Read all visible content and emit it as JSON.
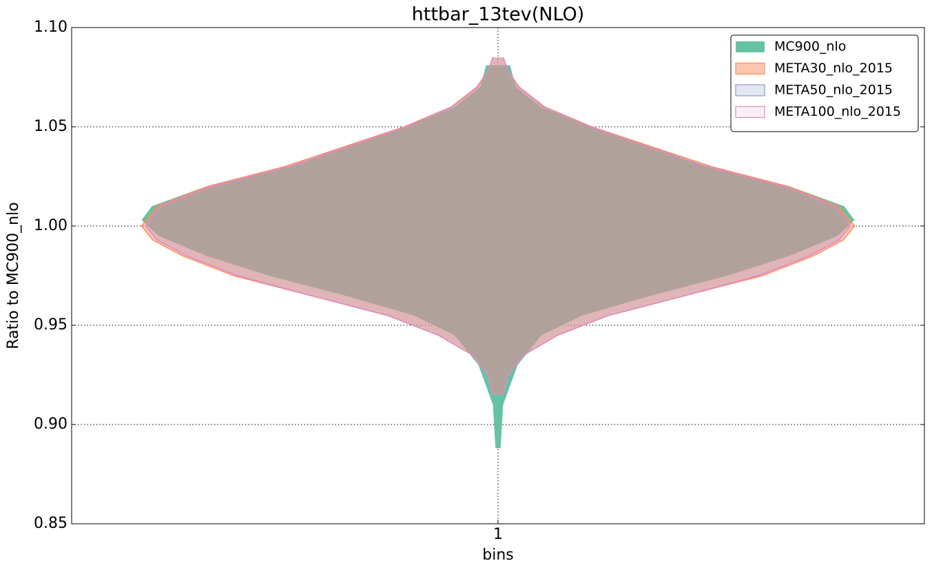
{
  "chart_data": {
    "type": "violin",
    "title": "httbar_13tev(NLO)",
    "xlabel": "bins",
    "ylabel": "Ratio to MC900_nlo",
    "categories": [
      1
    ],
    "xlim": [
      0.5,
      1.5
    ],
    "xticks": [
      1
    ],
    "ylim": [
      0.85,
      1.1
    ],
    "yticks": [
      0.85,
      {
        "value": 0.9,
        "label": "0.90"
      },
      0.95,
      {
        "value": 1.0,
        "label": "1.00"
      },
      1.05,
      {
        "value": 1.1,
        "label": "1.10"
      }
    ],
    "grid": true,
    "legend": "upper right",
    "series": [
      {
        "name": "MC900_nlo",
        "color": "#66c2a5",
        "alpha": 1,
        "y": [
          0.888,
          0.91,
          0.93,
          0.945,
          0.955,
          0.965,
          0.975,
          0.985,
          0.995,
          1.003,
          1.01,
          1.02,
          1.03,
          1.04,
          1.05,
          1.06,
          1.07,
          1.081
        ],
        "widths": [
          0.003,
          0.006,
          0.023,
          0.051,
          0.099,
          0.18,
          0.269,
          0.342,
          0.398,
          0.418,
          0.406,
          0.342,
          0.245,
          0.18,
          0.107,
          0.051,
          0.021,
          0.014
        ]
      },
      {
        "name": "META30_nlo_2015",
        "color": "#fc8d62",
        "alpha": 0.5,
        "y": [
          0.915,
          0.925,
          0.935,
          0.945,
          0.955,
          0.965,
          0.975,
          0.985,
          0.993,
          1.0,
          1.01,
          1.02,
          1.03,
          1.04,
          1.05,
          1.06,
          1.07,
          1.078,
          1.085
        ],
        "widths": [
          0.006,
          0.012,
          0.03,
          0.07,
          0.13,
          0.22,
          0.31,
          0.37,
          0.405,
          0.418,
          0.4,
          0.34,
          0.25,
          0.18,
          0.11,
          0.055,
          0.025,
          0.012,
          0.006
        ]
      },
      {
        "name": "META50_nlo_2015",
        "color": "#8da0cb",
        "alpha": 0.25,
        "y": [
          0.915,
          0.925,
          0.935,
          0.945,
          0.955,
          0.965,
          0.975,
          0.985,
          0.993,
          1.0,
          1.01,
          1.02,
          1.03,
          1.04,
          1.05,
          1.06,
          1.07,
          1.078,
          1.085
        ],
        "widths": [
          0.006,
          0.012,
          0.03,
          0.07,
          0.13,
          0.22,
          0.305,
          0.365,
          0.4,
          0.413,
          0.395,
          0.335,
          0.245,
          0.175,
          0.108,
          0.054,
          0.024,
          0.012,
          0.006
        ]
      },
      {
        "name": "META100_nlo_2015",
        "color": "#e78ac3",
        "alpha": 0.15,
        "y": [
          0.915,
          0.925,
          0.935,
          0.945,
          0.955,
          0.965,
          0.975,
          0.985,
          0.993,
          1.0,
          1.01,
          1.02,
          1.03,
          1.04,
          1.05,
          1.06,
          1.07,
          1.078,
          1.085
        ],
        "widths": [
          0.006,
          0.012,
          0.03,
          0.07,
          0.13,
          0.22,
          0.305,
          0.365,
          0.4,
          0.413,
          0.395,
          0.335,
          0.245,
          0.175,
          0.108,
          0.054,
          0.024,
          0.012,
          0.006
        ]
      }
    ]
  }
}
